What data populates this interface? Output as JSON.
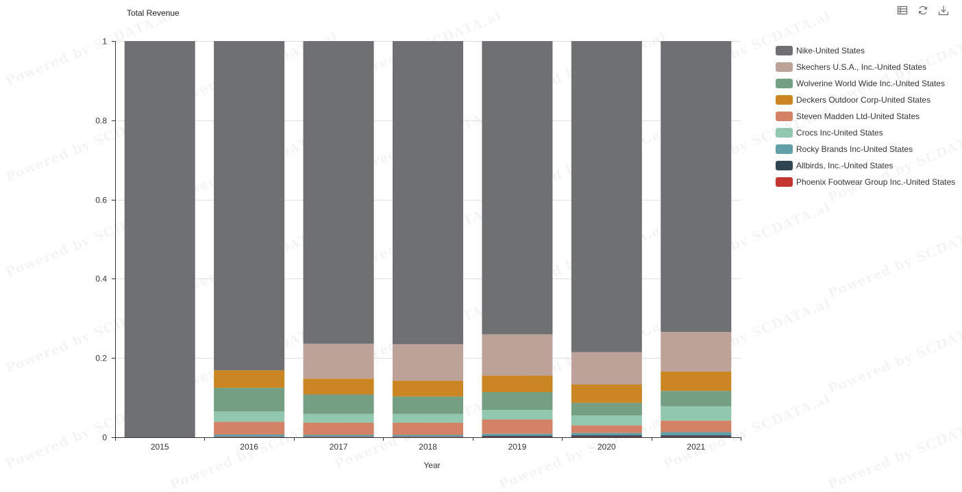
{
  "title": "Total Revenue",
  "toolbar": {
    "icons": [
      "data-view-icon",
      "refresh-icon",
      "download-icon"
    ]
  },
  "watermark": "Powered by SCDATA.ai",
  "chart_data": {
    "type": "bar",
    "stacked": true,
    "title": "Total Revenue",
    "xlabel": "Year",
    "ylabel": "",
    "ylim": [
      0,
      1
    ],
    "yticks": [
      "0",
      "0.2",
      "0.4",
      "0.6",
      "0.8",
      "1"
    ],
    "ytick_values": [
      0,
      0.2,
      0.4,
      0.6,
      0.8,
      1
    ],
    "grid": true,
    "legend_position": "right",
    "categories": [
      "2015",
      "2016",
      "2017",
      "2018",
      "2019",
      "2020",
      "2021"
    ],
    "series": [
      {
        "name": "Phoenix Footwear Group Inc.-United States",
        "color": "#c23531",
        "values": [
          0,
          0.001,
          0.001,
          0.001,
          0.001,
          0.001,
          0.001
        ]
      },
      {
        "name": "Allbirds, Inc.-United States",
        "color": "#2f4554",
        "values": [
          0,
          0,
          0,
          0,
          0.003,
          0.004,
          0.004
        ]
      },
      {
        "name": "Rocky Brands Inc-United States",
        "color": "#61a0a8",
        "values": [
          0,
          0.006,
          0.005,
          0.005,
          0.005,
          0.006,
          0.008
        ]
      },
      {
        "name": "Steven Madden Ltd-United States",
        "color": "#d48265",
        "values": [
          0,
          0.032,
          0.031,
          0.031,
          0.036,
          0.019,
          0.029
        ]
      },
      {
        "name": "Crocs Inc-United States",
        "color": "#91c7ae",
        "values": [
          0,
          0.026,
          0.022,
          0.022,
          0.024,
          0.025,
          0.036
        ]
      },
      {
        "name": "Wolverine World Wide Inc.-United States",
        "color": "#749f83",
        "values": [
          0,
          0.06,
          0.049,
          0.044,
          0.045,
          0.032,
          0.039
        ]
      },
      {
        "name": "Deckers Outdoor Corp-United States",
        "color": "#ca8622",
        "values": [
          0,
          0.044,
          0.04,
          0.04,
          0.042,
          0.046,
          0.049
        ]
      },
      {
        "name": "Skechers U.S.A., Inc.-United States",
        "color": "#bda29a",
        "values": [
          0,
          0,
          0.088,
          0.092,
          0.104,
          0.082,
          0.1
        ]
      },
      {
        "name": "Nike-United States",
        "color": "#6e7074",
        "values": [
          1,
          0.831,
          0.764,
          0.765,
          0.74,
          0.785,
          0.734
        ]
      }
    ],
    "legend_order": [
      "Nike-United States",
      "Skechers U.S.A., Inc.-United States",
      "Wolverine World Wide Inc.-United States",
      "Deckers Outdoor Corp-United States",
      "Steven Madden Ltd-United States",
      "Crocs Inc-United States",
      "Rocky Brands Inc-United States",
      "Allbirds, Inc.-United States",
      "Phoenix Footwear Group Inc.-United States"
    ]
  }
}
